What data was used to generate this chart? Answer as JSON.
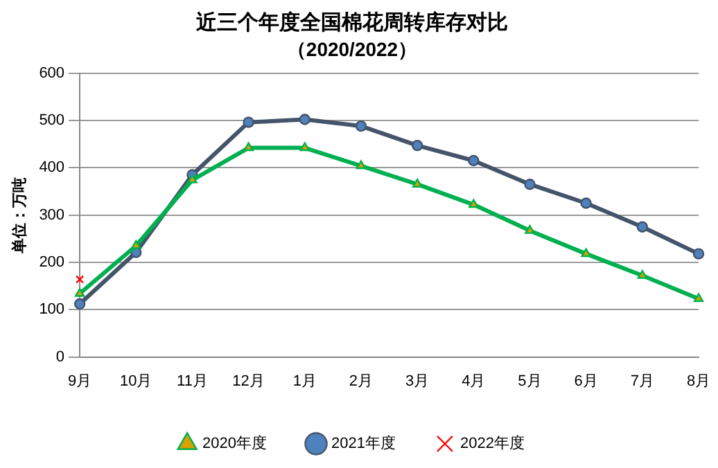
{
  "chart_data": {
    "type": "line",
    "title": "近三个年度全国棉花周转库存对比",
    "subtitle": "（2020/2022）",
    "ylabel": "单位：万吨",
    "categories": [
      "9月",
      "10月",
      "11月",
      "12月",
      "1月",
      "2月",
      "3月",
      "4月",
      "5月",
      "6月",
      "7月",
      "8月"
    ],
    "ylim": [
      0,
      600
    ],
    "yticks": [
      0,
      100,
      200,
      300,
      400,
      500,
      600
    ],
    "grid": "y",
    "legend": "bottom",
    "series": [
      {
        "name": "2020年度",
        "color": "#00b050",
        "marker": "triangle",
        "values": [
          134,
          235,
          374,
          442,
          442,
          404,
          365,
          322,
          267,
          218,
          172,
          123
        ]
      },
      {
        "name": "2021年度",
        "color": "#44546a",
        "marker": "circle",
        "values": [
          112,
          221,
          385,
          496,
          502,
          488,
          447,
          415,
          365,
          325,
          275,
          218
        ]
      },
      {
        "name": "2022年度",
        "color": "#ff0000",
        "marker": "cross",
        "values": [
          164,
          null,
          null,
          null,
          null,
          null,
          null,
          null,
          null,
          null,
          null,
          null
        ]
      }
    ]
  }
}
